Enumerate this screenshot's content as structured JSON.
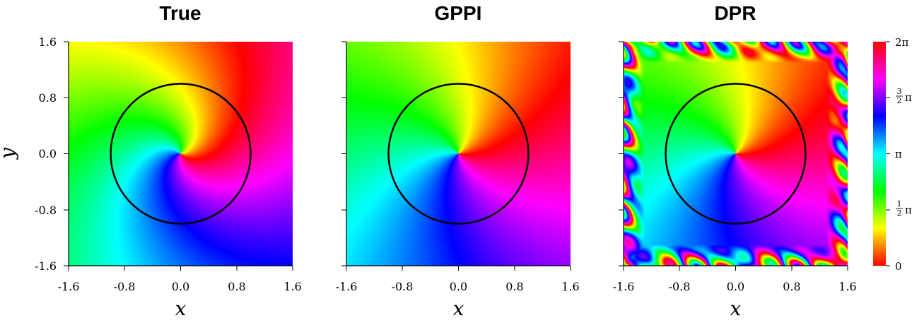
{
  "chart_data": [
    {
      "type": "heatmap",
      "title": "True",
      "xlabel": "x",
      "ylabel": "y",
      "xlim": [
        -1.6,
        1.6
      ],
      "ylim": [
        -1.6,
        1.6
      ],
      "xticks": [
        "-1.6",
        "-0.8",
        "0.0",
        "0.8",
        "1.6"
      ],
      "yticks": [
        "-1.6",
        "-0.8",
        "0.0",
        "0.8",
        "1.6"
      ],
      "field": "phase",
      "vortex_center": [
        0.0,
        0.0
      ],
      "spiral_twist": 1.1,
      "boundary_circle": {
        "center": [
          0.0,
          0.0
        ],
        "radius": 1.0
      }
    },
    {
      "type": "heatmap",
      "title": "GPPI",
      "xlabel": "x",
      "xlim": [
        -1.6,
        1.6
      ],
      "ylim": [
        -1.6,
        1.6
      ],
      "xticks": [
        "-1.6",
        "-0.8",
        "0.0",
        "0.8",
        "1.6"
      ],
      "field": "phase",
      "vortex_center": [
        0.0,
        0.0
      ],
      "spiral_twist": 0.45,
      "boundary_circle": {
        "center": [
          0.0,
          0.0
        ],
        "radius": 1.0
      }
    },
    {
      "type": "heatmap",
      "title": "DPR",
      "xlabel": "x",
      "xlim": [
        -1.6,
        1.6
      ],
      "ylim": [
        -1.6,
        1.6
      ],
      "xticks": [
        "-1.6",
        "-0.8",
        "0.0",
        "0.8",
        "1.6"
      ],
      "field": "phase",
      "vortex_center": [
        0.0,
        0.0
      ],
      "spiral_twist": 0.45,
      "edge_artifacts": true,
      "boundary_circle": {
        "center": [
          0.0,
          0.0
        ],
        "radius": 1.0
      }
    }
  ],
  "colorbar": {
    "range": [
      0,
      6.2832
    ],
    "colormap": "hsv",
    "ticks": [
      {
        "value": 0,
        "label": "0"
      },
      {
        "value": 1.5708,
        "label": "π",
        "frac": [
          "1",
          "2"
        ]
      },
      {
        "value": 3.1416,
        "label": "π"
      },
      {
        "value": 4.7124,
        "label": "π",
        "frac": [
          "3",
          "2"
        ]
      },
      {
        "value": 6.2832,
        "label": "2π"
      }
    ]
  },
  "colors": {
    "circle": "#000000",
    "axes": "#000000",
    "background": "#ffffff"
  }
}
